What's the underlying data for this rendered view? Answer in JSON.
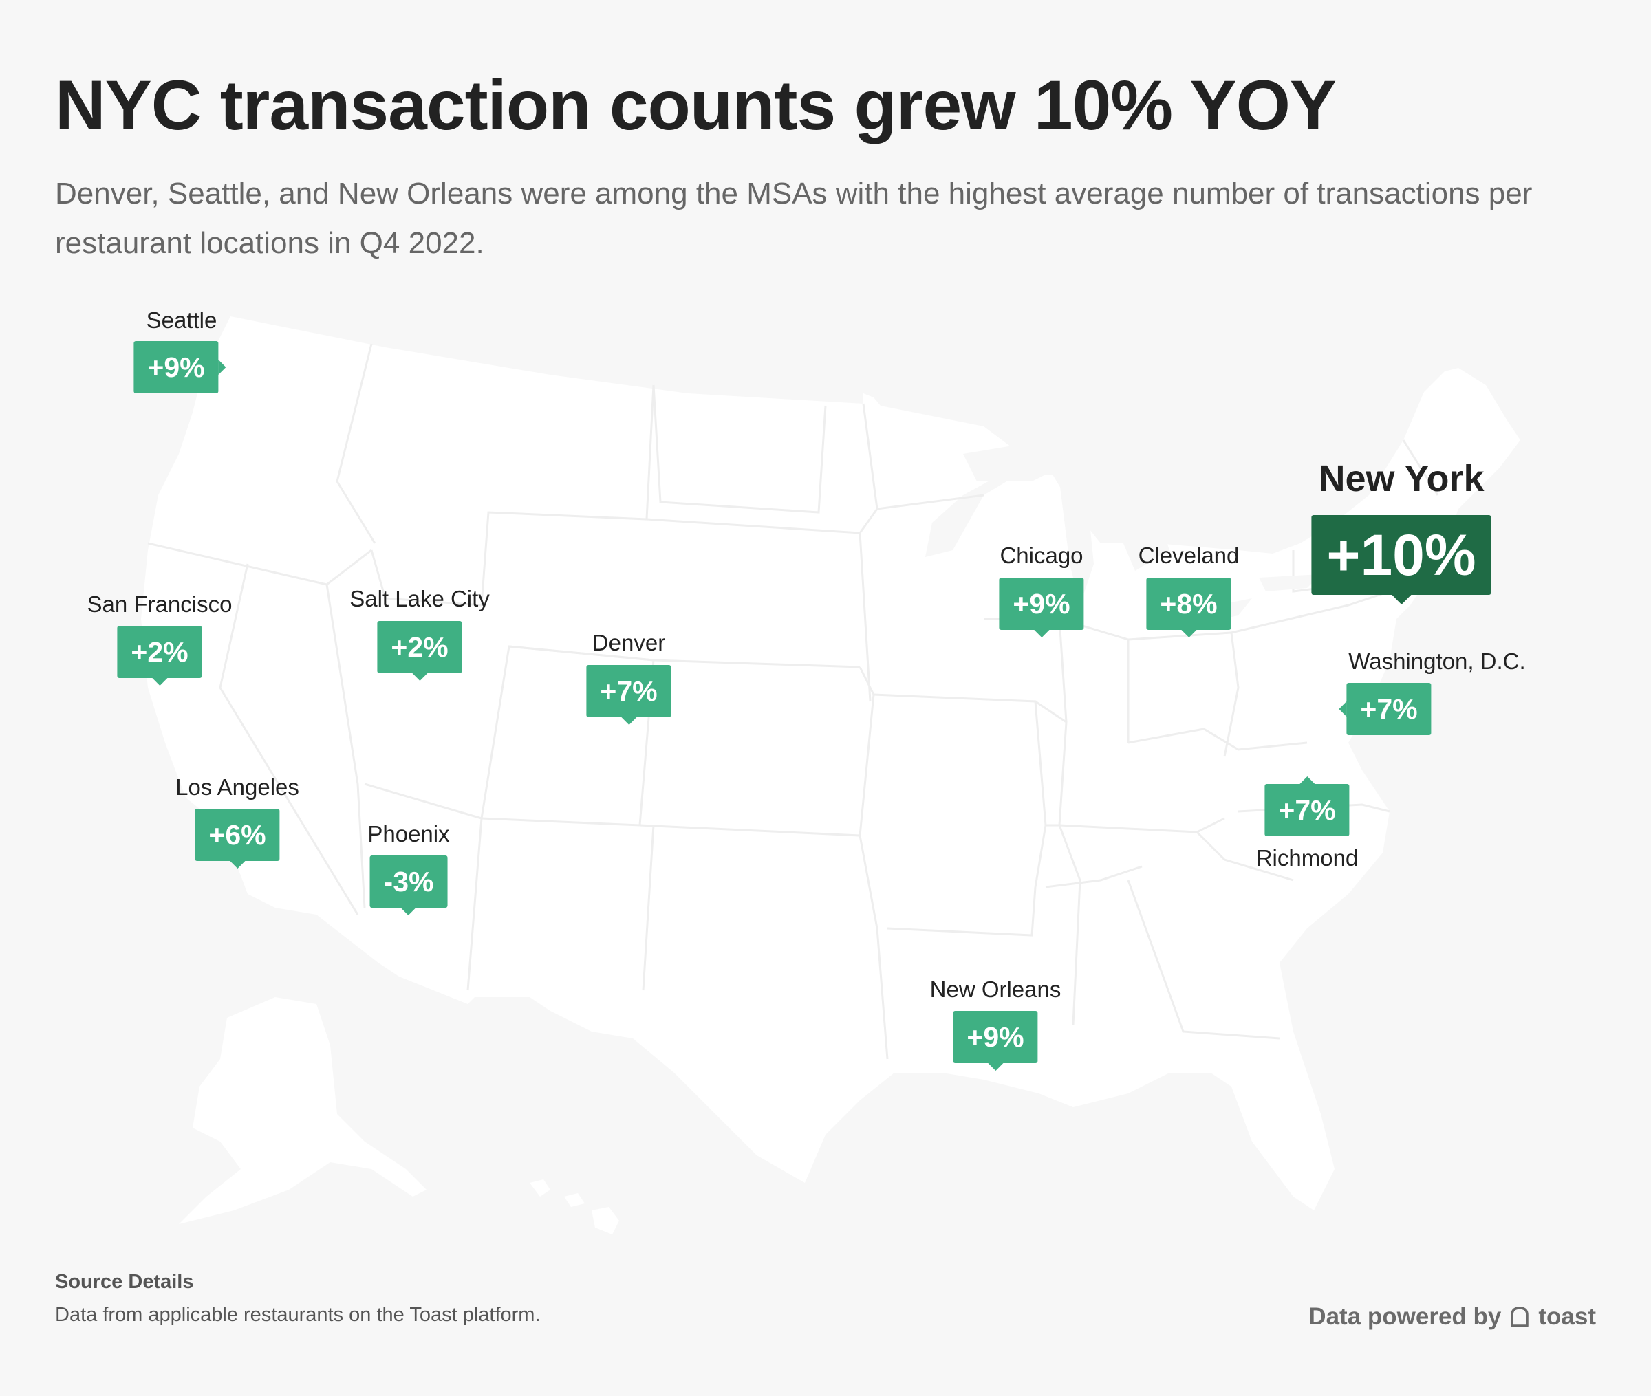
{
  "header": {
    "title": "NYC transaction counts grew 10% YOY",
    "subtitle": "Denver, Seattle, and New Orleans were among the MSAs with the highest average number of transactions per restaurant locations in Q4 2022."
  },
  "map": {
    "region": "United States",
    "land_color": "#ffffff",
    "border_color": "#eeeeee",
    "cities": [
      {
        "name": "Seattle",
        "value": "+9%"
      },
      {
        "name": "San Francisco",
        "value": "+2%"
      },
      {
        "name": "Salt Lake City",
        "value": "+2%"
      },
      {
        "name": "Denver",
        "value": "+7%"
      },
      {
        "name": "Los Angeles",
        "value": "+6%"
      },
      {
        "name": "Phoenix",
        "value": "-3%"
      },
      {
        "name": "Chicago",
        "value": "+9%"
      },
      {
        "name": "Cleveland",
        "value": "+8%"
      },
      {
        "name": "New York",
        "value": "+10%",
        "highlight": true
      },
      {
        "name": "Washington, D.C.",
        "value": "+7%"
      },
      {
        "name": "Richmond",
        "value": "+7%"
      },
      {
        "name": "New Orleans",
        "value": "+9%"
      }
    ],
    "badge_color": "#3fb083",
    "highlight_color": "#1f6b45"
  },
  "footer": {
    "source_title": "Source Details",
    "source_text": "Data from applicable restaurants on the Toast platform.",
    "powered_by": "Data powered by",
    "brand_name": "toast",
    "brand_icon": "toast-logo-icon"
  }
}
